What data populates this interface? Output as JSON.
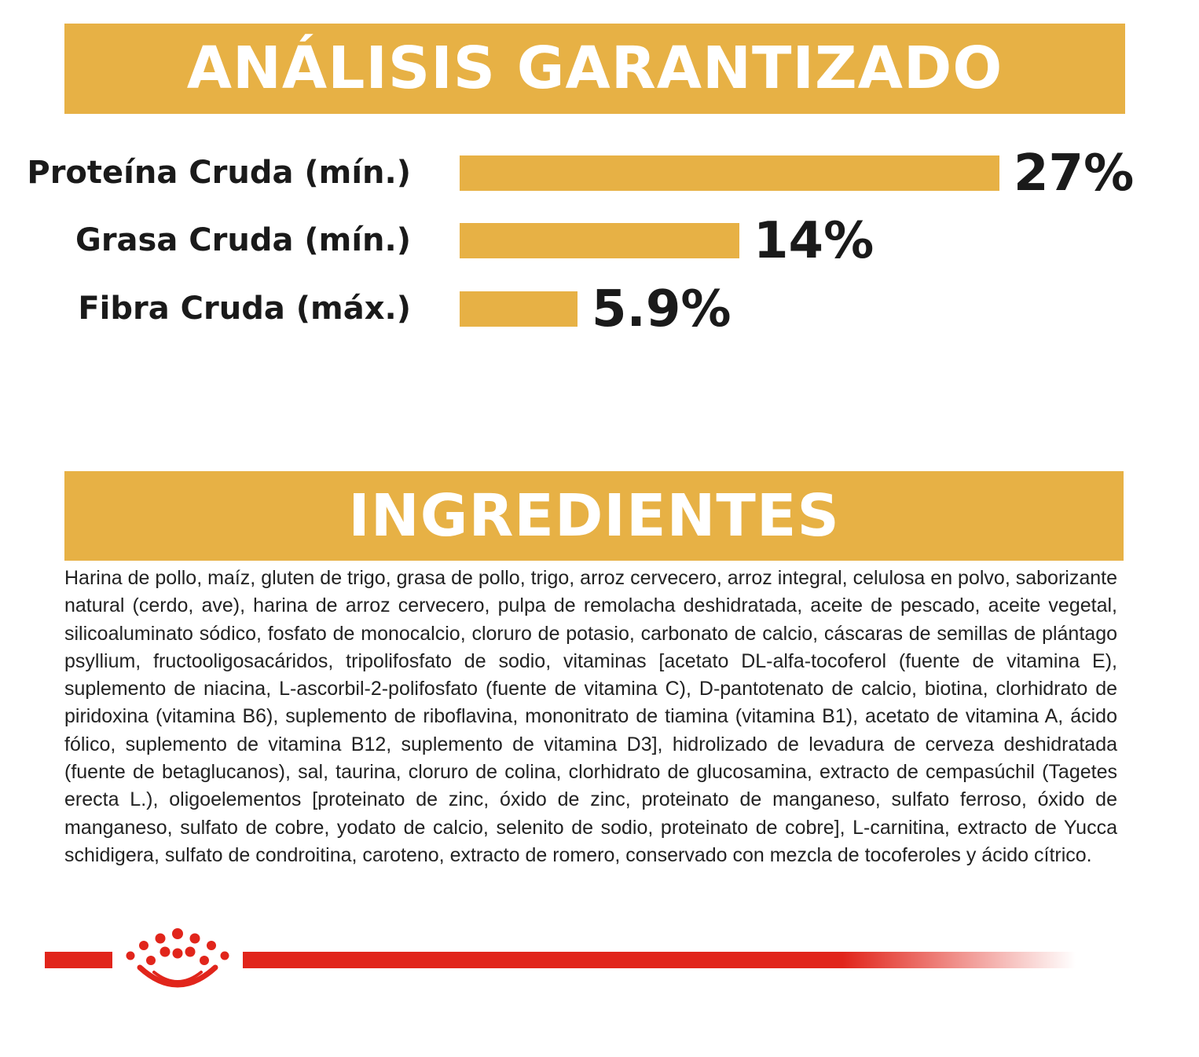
{
  "analysis": {
    "header": "ANÁLISIS GARANTIZADO"
  },
  "chart_data": {
    "type": "bar",
    "orientation": "horizontal",
    "title": "ANÁLISIS GARANTIZADO",
    "categories": [
      "Proteína Cruda (mín.)",
      "Grasa Cruda (mín.)",
      "Fibra Cruda (máx.)"
    ],
    "values": [
      27,
      14,
      5.9
    ],
    "value_labels": [
      "27%",
      "14%",
      "5.9%"
    ],
    "unit": "%",
    "xlim": [
      0,
      27
    ],
    "grid": false,
    "legend": "none",
    "bar_color": "#e7b145"
  },
  "ingredients": {
    "header": "INGREDIENTES",
    "text": "Harina de pollo, maíz, gluten de trigo, grasa de pollo, trigo, arroz cervecero, arroz integral, celulosa en polvo, saborizante natural (cerdo, ave), harina de arroz cervecero, pulpa de remolacha deshidratada, aceite de pescado, aceite vegetal, silicoaluminato sódico, fosfato de monocalcio, cloruro de potasio, carbonato de calcio, cáscaras de semillas de plántago psyllium, fructooligosacáridos, tripolifosfato de sodio, vitaminas [acetato DL-alfa-tocoferol (fuente de vitamina E), suplemento de niacina, L-ascorbil-2-polifosfato (fuente de vitamina C), D-pantotenato de calcio, biotina, clorhidrato de piridoxina (vitamina B6), suplemento de riboflavina, mononitrato de tiamina (vitamina B1), acetato de vitamina A, ácido fólico, suplemento de vitamina B12, suplemento de vitamina D3], hidrolizado de levadura de cerveza deshidratada (fuente de betaglucanos), sal, taurina, cloruro de colina, clorhidrato de glucosamina, extracto de cempasúchil (Tagetes erecta L.), oligoelementos [proteinato de zinc, óxido de zinc, proteinato de manganeso, sulfato ferroso, óxido de manganeso, sulfato de cobre, yodato de calcio, selenito de sodio, proteinato de cobre], L-carnitina, extracto de Yucca schidigera, sulfato de condroitina, caroteno, extracto de romero, conservado con mezcla de tocoferoles y ácido cítrico."
  },
  "footer": {
    "logo_icon": "crown-icon",
    "accent_color": "#e1251b"
  }
}
